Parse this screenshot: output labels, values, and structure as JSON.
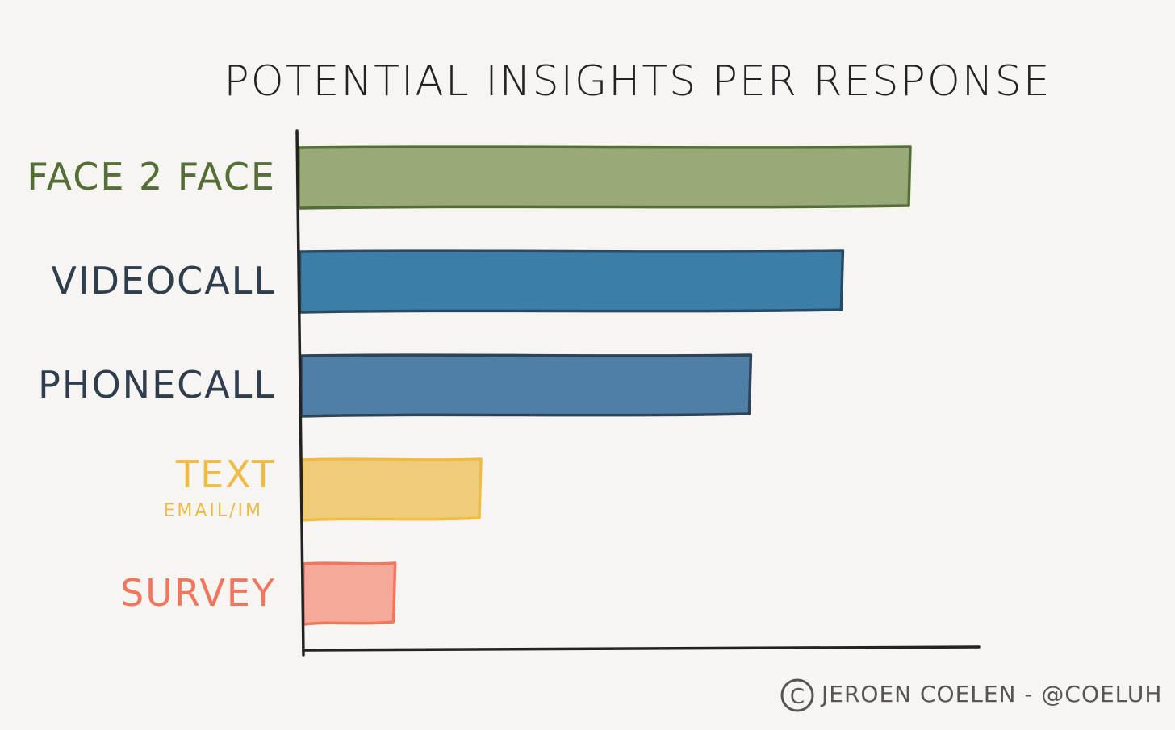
{
  "chart_data": {
    "type": "bar",
    "orientation": "horizontal",
    "title": "POTENTIAL INSIGHTS PER RESPONSE",
    "xlabel": "",
    "ylabel": "",
    "xlim": [
      0,
      100
    ],
    "grid": false,
    "legend": "none",
    "categories": [
      {
        "label": "FACE 2 FACE",
        "sublabel": "",
        "value": 100,
        "fill": "#99aa78",
        "stroke": "#556e35",
        "text_color": "#556e35"
      },
      {
        "label": "VIDEOCALL",
        "sublabel": "",
        "value": 89,
        "fill": "#3b7ea8",
        "stroke": "#2a4a62",
        "text_color": "#2e3e4e"
      },
      {
        "label": "PHONECALL",
        "sublabel": "",
        "value": 74,
        "fill": "#507fa6",
        "stroke": "#2e4258",
        "text_color": "#2e3e4e"
      },
      {
        "label": "TEXT",
        "sublabel": "EMAIL/IM",
        "value": 30,
        "fill": "#efcb7a",
        "stroke": "#eebc45",
        "text_color": "#eebc45"
      },
      {
        "label": "SURVEY",
        "sublabel": "",
        "value": 16,
        "fill": "#f4a99a",
        "stroke": "#f2765e",
        "text_color": "#f2765e"
      }
    ]
  },
  "credit": {
    "text": "JEROEN COELEN - @COELUH",
    "symbol": "C"
  },
  "colors": {
    "background": "#f6f5f1",
    "ink": "#222222",
    "credit": "#555555"
  }
}
